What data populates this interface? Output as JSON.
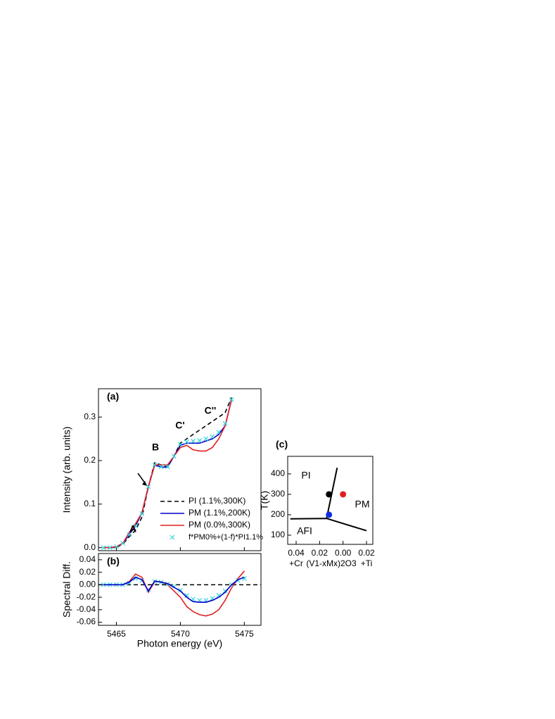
{
  "chart_data": [
    {
      "type": "line",
      "ylabel": "Intensity (arb. units)",
      "panel_label": "(a)",
      "annotations": [
        "A",
        "B",
        "C'",
        "C''"
      ],
      "x": [
        5464,
        5464.5,
        5465,
        5465.5,
        5466,
        5466.5,
        5467,
        5467.5,
        5468,
        5468.5,
        5469,
        5469.5,
        5470,
        5470.5,
        5471,
        5471.5,
        5472,
        5472.5,
        5473,
        5473.5,
        5474
      ],
      "series": [
        {
          "name": "PI  (1.1%,300K)",
          "color": "#000000",
          "dash": true,
          "values": [
            0,
            0,
            0.001,
            0.008,
            0.025,
            0.04,
            0.07,
            0.14,
            0.195,
            0.19,
            0.185,
            0.21,
            0.24,
            0.25,
            0.26,
            0.27,
            0.28,
            0.29,
            0.3,
            0.31,
            0.345
          ]
        },
        {
          "name": "PM (1.1%,200K)",
          "color": "#0000cc",
          "values": [
            0,
            0,
            0.002,
            0.01,
            0.03,
            0.05,
            0.08,
            0.14,
            0.19,
            0.185,
            0.185,
            0.21,
            0.235,
            0.24,
            0.24,
            0.24,
            0.245,
            0.25,
            0.26,
            0.28,
            0.34
          ]
        },
        {
          "name": "PM (0.0%,300K)",
          "color": "#e02020",
          "values": [
            0,
            0,
            0.002,
            0.01,
            0.035,
            0.055,
            0.08,
            0.14,
            0.19,
            0.19,
            0.19,
            0.21,
            0.23,
            0.235,
            0.225,
            0.222,
            0.222,
            0.23,
            0.25,
            0.28,
            0.34
          ]
        },
        {
          "name": "f*PM0%+(1-f)*PI1.1%",
          "color": "#33d6e0",
          "marker": "x",
          "values": [
            0,
            0,
            0.002,
            0.01,
            0.03,
            0.05,
            0.078,
            0.14,
            0.19,
            0.186,
            0.186,
            0.21,
            0.237,
            0.243,
            0.245,
            0.246,
            0.25,
            0.255,
            0.265,
            0.285,
            0.34
          ]
        }
      ],
      "xlim": [
        5463.6,
        5476.3
      ],
      "xticks": [
        5465,
        5470,
        5475
      ],
      "ylim": [
        -0.007,
        0.365
      ],
      "yticks": [
        {
          "value": 0,
          "label": "0.0"
        },
        0.1,
        0.2,
        0.3
      ]
    },
    {
      "type": "line",
      "ylabel": "Spectral Diff.",
      "xlabel": "Photon energy (eV)",
      "panel_label": "(b)",
      "hline": 0,
      "x": [
        5464,
        5464.5,
        5465,
        5465.5,
        5466,
        5466.5,
        5467,
        5467.5,
        5468,
        5468.5,
        5469,
        5469.5,
        5470,
        5470.5,
        5471,
        5471.5,
        5472,
        5472.5,
        5473,
        5473.5,
        5474,
        5474.5,
        5475
      ],
      "series": [
        {
          "color": "#e02020",
          "values": [
            0,
            0,
            0,
            0,
            0.005,
            0.017,
            0.012,
            -0.012,
            0.005,
            0.005,
            0,
            -0.01,
            -0.02,
            -0.035,
            -0.043,
            -0.048,
            -0.05,
            -0.047,
            -0.04,
            -0.025,
            -0.005,
            0.01,
            0.022
          ]
        },
        {
          "color": "#33d6e0",
          "marker": "x",
          "values": [
            0,
            0,
            0,
            0,
            0.003,
            0.01,
            0.007,
            -0.008,
            0.005,
            0.004,
            0.001,
            -0.003,
            -0.009,
            -0.017,
            -0.023,
            -0.025,
            -0.025,
            -0.022,
            -0.017,
            -0.01,
            0,
            0.007,
            0.01
          ]
        },
        {
          "color": "#0000cc",
          "values": [
            0,
            0,
            0,
            0,
            0.004,
            0.012,
            0.008,
            -0.01,
            0.006,
            0.004,
            0.002,
            -0.004,
            -0.01,
            -0.02,
            -0.027,
            -0.028,
            -0.028,
            -0.025,
            -0.02,
            -0.012,
            0,
            0.008,
            0.012
          ]
        }
      ],
      "xlim": [
        5463.6,
        5476.3
      ],
      "xticks": [
        5465,
        5470,
        5475
      ],
      "ylim": [
        -0.065,
        0.05
      ],
      "yticks": [
        0.04,
        0.02,
        {
          "value": 0,
          "label": "0.00"
        },
        -0.02,
        -0.04,
        -0.06
      ]
    },
    {
      "type": "scatter",
      "ylabel": "T(K)",
      "panel_label": "(c)",
      "x_sublabels": [
        "+Cr",
        "(V1-xMx)2O3",
        "+Ti"
      ],
      "regions": [
        "PI",
        "PM",
        "AFI"
      ],
      "points": {
        "x": [
          -0.012,
          0,
          -0.012
        ],
        "y": [
          300,
          300,
          200
        ],
        "colors": [
          "#000000",
          "#e02020",
          "#1030e0"
        ]
      },
      "boundaries": [
        {
          "x": [
            -0.045,
            -0.014,
            0.02
          ],
          "y": [
            180,
            182,
            122
          ]
        },
        {
          "x": [
            -0.014,
            -0.005
          ],
          "y": [
            182,
            430
          ]
        }
      ],
      "xlim": [
        -0.0472,
        0.0254
      ],
      "xticks": [
        {
          "value": -0.04,
          "label": "0.04"
        },
        {
          "value": -0.02,
          "label": "0.02"
        },
        {
          "value": 0,
          "label": "0.00"
        },
        0.02
      ],
      "ylim": [
        55,
        486
      ],
      "yticks": [
        100,
        200,
        300,
        400
      ]
    }
  ]
}
